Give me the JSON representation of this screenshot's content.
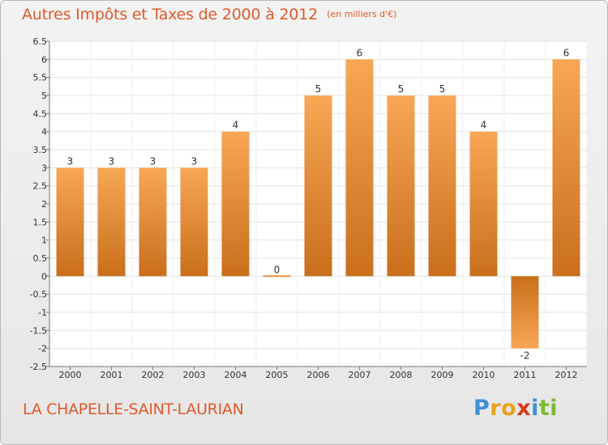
{
  "header": {
    "title": "Autres Impôts et Taxes de 2000 à 2012",
    "unit": "(en milliers d'€)"
  },
  "footer": {
    "commune": "LA CHAPELLE-SAINT-LAURIAN",
    "brand_letters": [
      {
        "char": "P",
        "color": "#3f8fd2"
      },
      {
        "char": "r",
        "color": "#e8a21b"
      },
      {
        "char": "o",
        "color": "#e8a21b"
      },
      {
        "char": "x",
        "color": "#d8391f"
      },
      {
        "char": "i",
        "color": "#3f8fd2"
      },
      {
        "char": "t",
        "color": "#7cba2f"
      },
      {
        "char": "i",
        "color": "#7cba2f"
      }
    ]
  },
  "colors": {
    "accent": "#e05a2a",
    "bar_light": "#f7a756",
    "bar_dark": "#c96f1c"
  },
  "chart_data": {
    "type": "bar",
    "categories": [
      "2000",
      "2001",
      "2002",
      "2003",
      "2004",
      "2005",
      "2006",
      "2007",
      "2008",
      "2009",
      "2010",
      "2011",
      "2012"
    ],
    "values": [
      3,
      3,
      3,
      3,
      4,
      0,
      5,
      6,
      5,
      5,
      4,
      -2,
      6
    ],
    "value_labels": [
      "3",
      "3",
      "3",
      "3",
      "4",
      "0",
      "5",
      "6",
      "5",
      "5",
      "4",
      "-2",
      "6"
    ],
    "ylim": [
      -2.5,
      6.5
    ],
    "yticks": [
      -2.5,
      -2,
      -1.5,
      -1,
      -0.5,
      0,
      0.5,
      1,
      1.5,
      2,
      2.5,
      3,
      3.5,
      4,
      4.5,
      5,
      5.5,
      6,
      6.5
    ],
    "ytick_labels": [
      "-2.5",
      "-2",
      "-1.5",
      "-1",
      "-0.5",
      "0",
      "0.5",
      "1",
      "1.5",
      "2",
      "2.5",
      "3",
      "3.5",
      "4",
      "4.5",
      "5",
      "5.5",
      "6",
      "6.5"
    ],
    "grid": true,
    "legend": false
  }
}
